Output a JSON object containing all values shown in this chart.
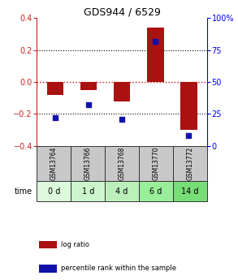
{
  "title": "GDS944 / 6529",
  "samples": [
    "GSM13764",
    "GSM13766",
    "GSM13768",
    "GSM13770",
    "GSM13772"
  ],
  "time_labels": [
    "0 d",
    "1 d",
    "4 d",
    "6 d",
    "14 d"
  ],
  "log_ratio": [
    -0.08,
    -0.05,
    -0.12,
    0.34,
    -0.3
  ],
  "percentile_rank": [
    22,
    32,
    21,
    82,
    8
  ],
  "ylim_left": [
    -0.4,
    0.4
  ],
  "ylim_right": [
    0,
    100
  ],
  "yticks_left": [
    -0.4,
    -0.2,
    0.0,
    0.2,
    0.4
  ],
  "yticks_right": [
    0,
    25,
    50,
    75,
    100
  ],
  "yticklabels_right": [
    "0",
    "25",
    "50",
    "75",
    "100%"
  ],
  "bar_color_red": "#aa1111",
  "dot_color_blue": "#1111aa",
  "zero_line_color": "#cc1111",
  "bg_plot": "#ffffff",
  "bg_gsm": "#c8c8c8",
  "bg_time_0": "#ddfadd",
  "bg_time_1": "#ccf5cc",
  "bg_time_2": "#bbf0bb",
  "bg_time_3": "#99ee99",
  "bg_time_4": "#77dd77",
  "legend_red_label": "log ratio",
  "legend_blue_label": "percentile rank within the sample",
  "time_label": "time",
  "bar_width": 0.5
}
